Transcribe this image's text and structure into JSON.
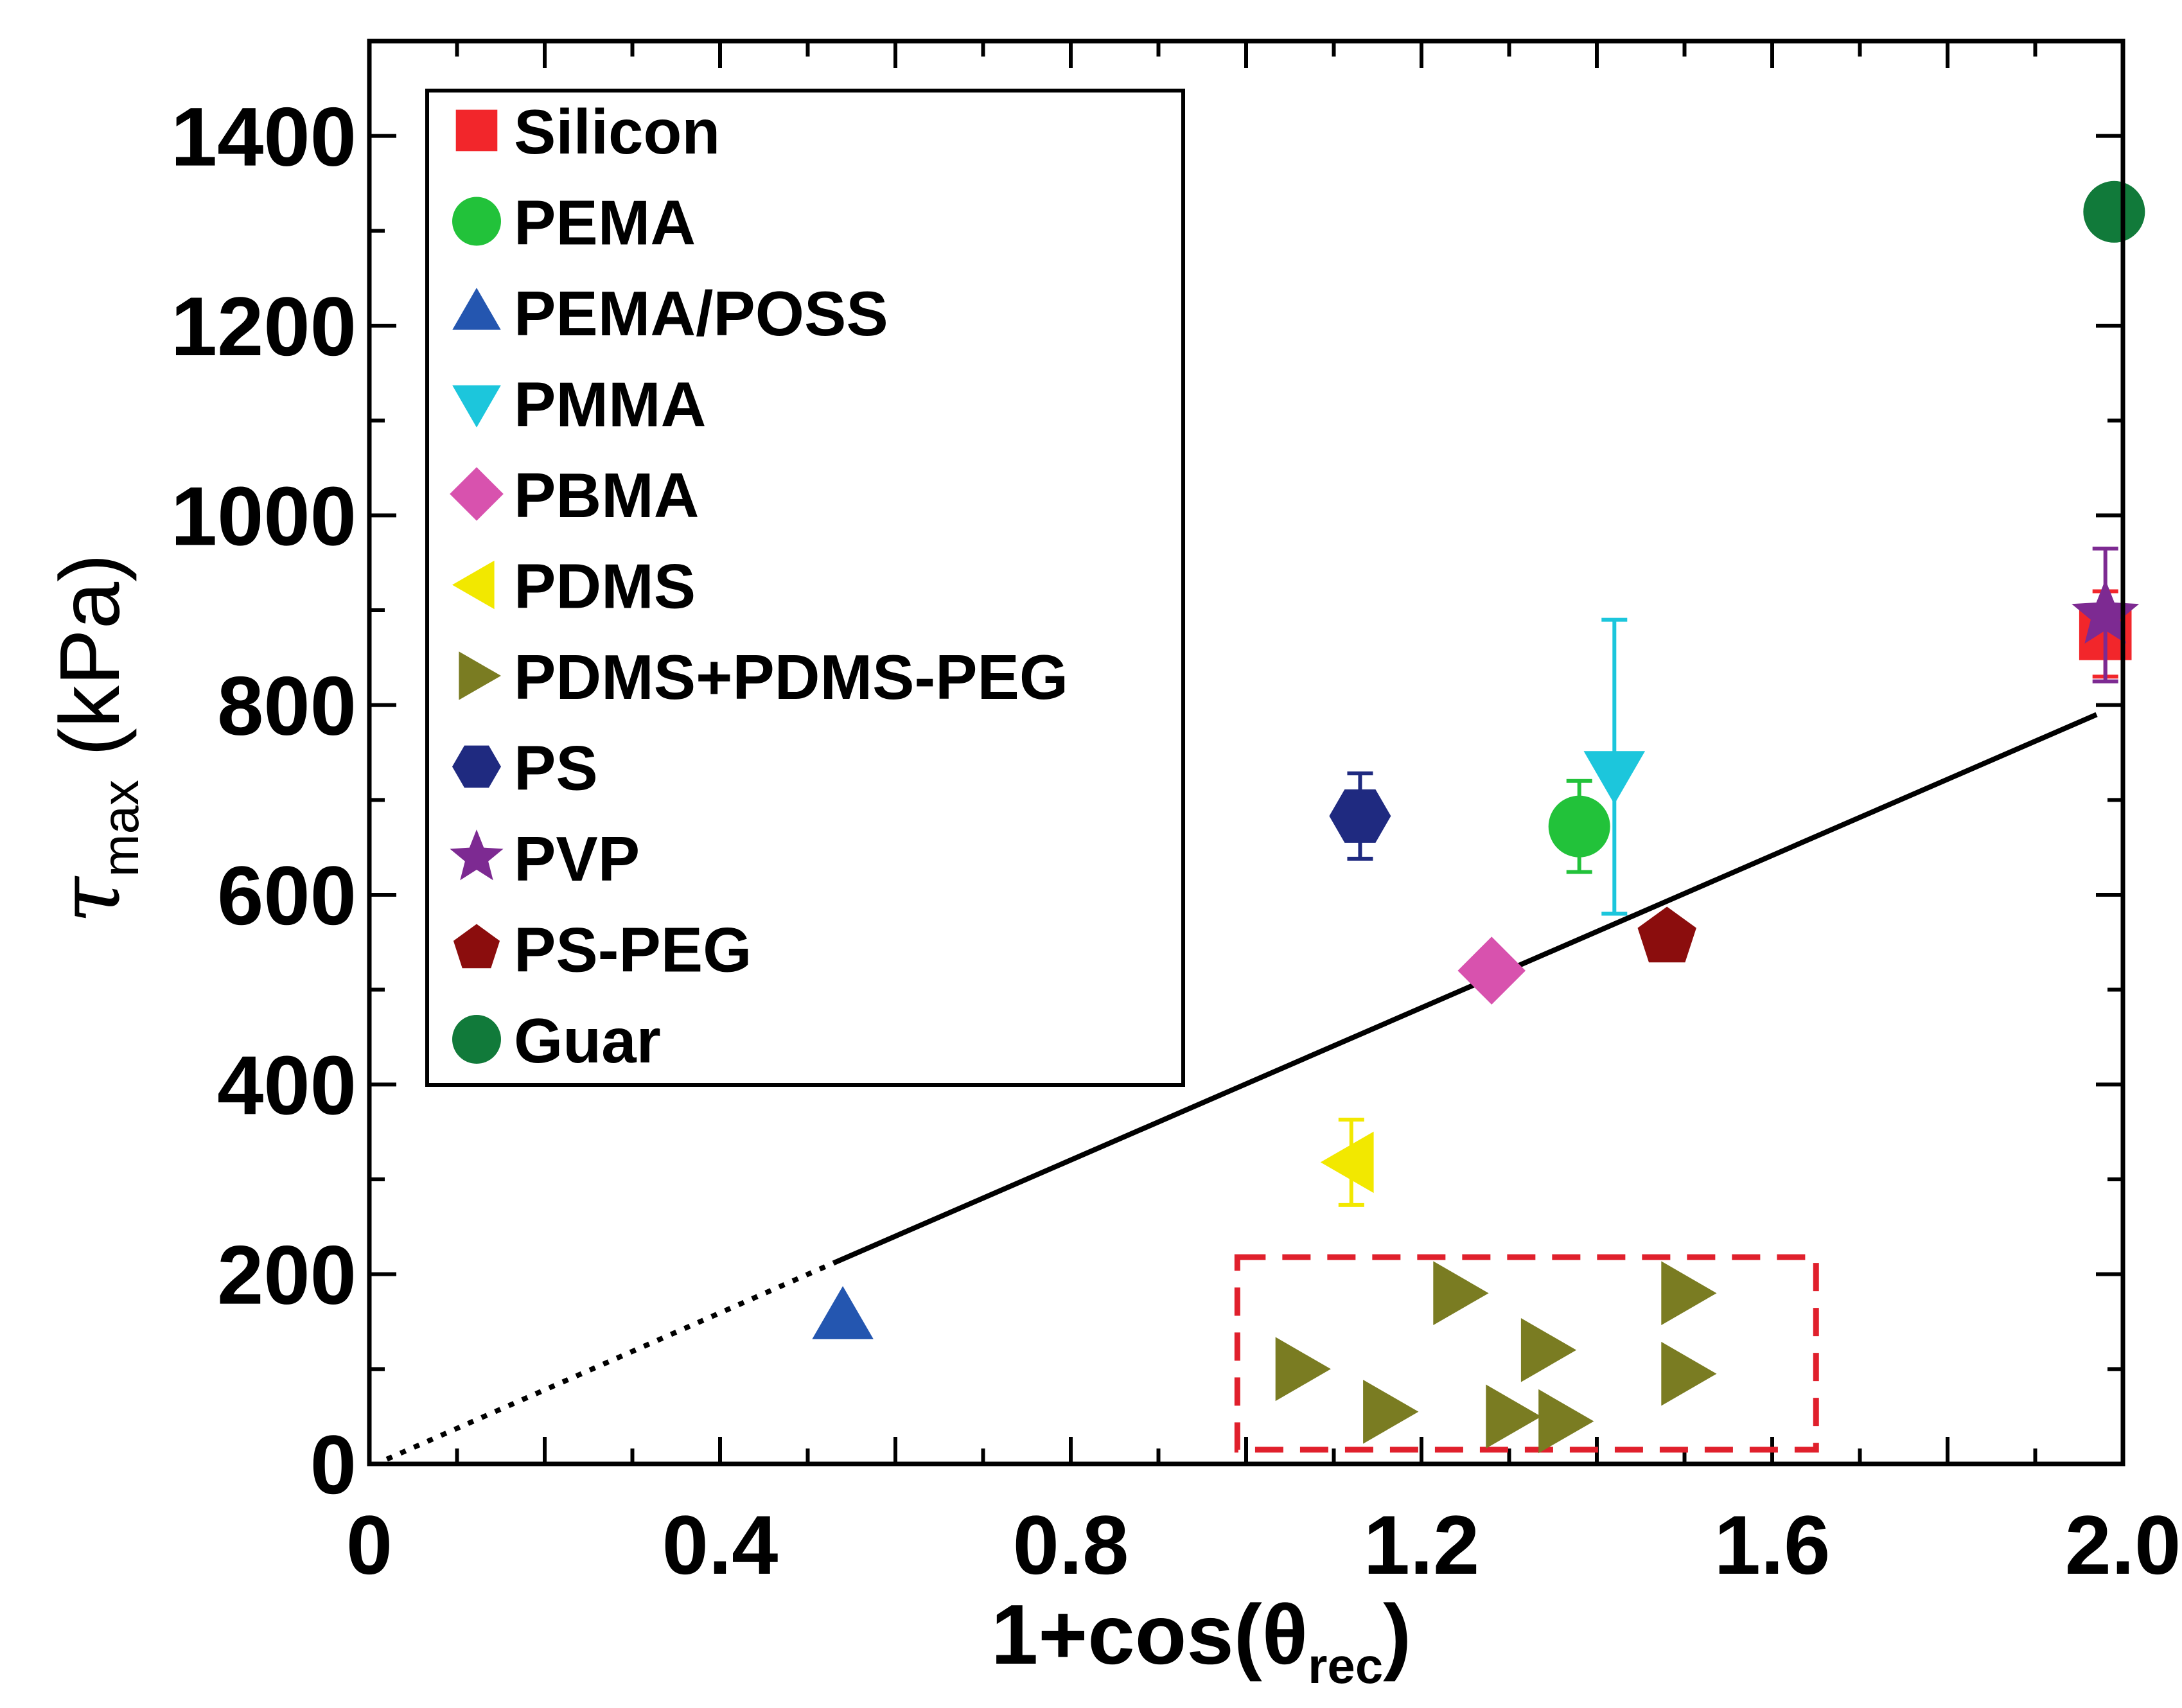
{
  "chart_data": {
    "type": "scatter",
    "xlabel": {
      "main": "1+cos(θ",
      "sub": "rec",
      "close": ")"
    },
    "ylabel": {
      "symbol": "τ",
      "sub": "max",
      "unit": " (kPa)"
    },
    "xlim": [
      0,
      2.0
    ],
    "ylim": [
      0,
      1500
    ],
    "x_ticks": [
      0,
      0.4,
      0.8,
      1.2,
      1.6,
      2.0
    ],
    "x_tick_labels": [
      "0",
      "0.4",
      "0.8",
      "1.2",
      "1.6",
      "2.0"
    ],
    "y_ticks": [
      0,
      200,
      400,
      600,
      800,
      1000,
      1200,
      1400
    ],
    "y_tick_labels": [
      "0",
      "200",
      "400",
      "600",
      "800",
      "1000",
      "1200",
      "1400"
    ],
    "legend_position": "top-left",
    "series": [
      {
        "name": "Silicon",
        "marker": "square",
        "color": "#f2262b",
        "points": [
          {
            "x": 1.98,
            "y": 875,
            "err": 45
          }
        ]
      },
      {
        "name": "PEMA",
        "marker": "circle",
        "color": "#22c23a",
        "points": [
          {
            "x": 1.38,
            "y": 672,
            "err": 48
          }
        ]
      },
      {
        "name": "PEMA/POSS",
        "marker": "triangle-up",
        "color": "#2456b0",
        "points": [
          {
            "x": 0.54,
            "y": 155
          }
        ]
      },
      {
        "name": "PMMA",
        "marker": "triangle-down",
        "color": "#1cc6dc",
        "points": [
          {
            "x": 1.42,
            "y": 728,
            "err_lo": 148,
            "err_hi": 162
          }
        ]
      },
      {
        "name": "PBMA",
        "marker": "diamond",
        "color": "#d852ae",
        "points": [
          {
            "x": 1.28,
            "y": 520
          }
        ]
      },
      {
        "name": "PDMS",
        "marker": "triangle-left",
        "color": "#f2e800",
        "points": [
          {
            "x": 1.12,
            "y": 318,
            "err": 45
          }
        ]
      },
      {
        "name": "PDMS+PDMS-PEG",
        "marker": "triangle-right",
        "color": "#7a7c22",
        "points": [
          {
            "x": 1.06,
            "y": 100
          },
          {
            "x": 1.16,
            "y": 55
          },
          {
            "x": 1.24,
            "y": 180
          },
          {
            "x": 1.3,
            "y": 50
          },
          {
            "x": 1.34,
            "y": 120
          },
          {
            "x": 1.36,
            "y": 45
          },
          {
            "x": 1.5,
            "y": 180
          },
          {
            "x": 1.5,
            "y": 95
          }
        ]
      },
      {
        "name": "PS",
        "marker": "hexagon",
        "color": "#1f2a80",
        "points": [
          {
            "x": 1.13,
            "y": 683,
            "err": 45
          }
        ]
      },
      {
        "name": "PVP",
        "marker": "star",
        "color": "#7d2a92",
        "points": [
          {
            "x": 1.98,
            "y": 895,
            "err": 70
          }
        ]
      },
      {
        "name": "PS-PEG",
        "marker": "pentagon",
        "color": "#8b0d0d",
        "points": [
          {
            "x": 1.48,
            "y": 555
          }
        ]
      },
      {
        "name": "Guar",
        "marker": "circle",
        "color": "#117a3a",
        "points": [
          {
            "x": 1.99,
            "y": 1320
          }
        ]
      }
    ],
    "fit_line": {
      "solid": [
        [
          0.53,
          212
        ],
        [
          1.97,
          790
        ]
      ],
      "dotted": [
        [
          0.02,
          5
        ],
        [
          0.53,
          212
        ]
      ],
      "color": "#000000"
    },
    "highlight_box": {
      "x0": 0.99,
      "x1": 1.65,
      "y0": 15,
      "y1": 218,
      "color": "#e0202c",
      "style": "dashed"
    }
  }
}
